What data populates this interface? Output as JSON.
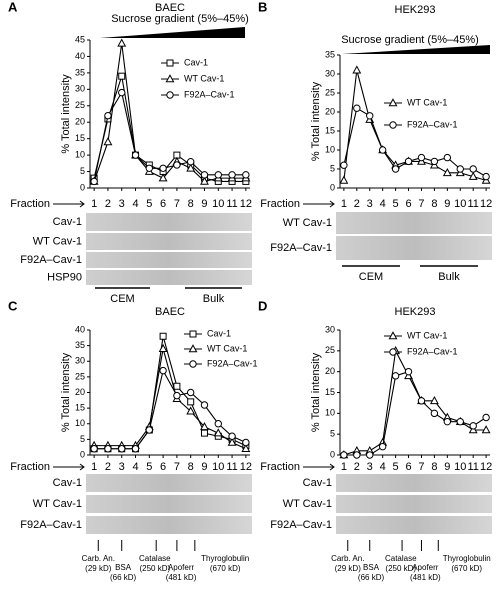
{
  "chart_data": [
    {
      "type": "line",
      "label": "A",
      "title": "BAEC",
      "subtitle": "Sucrose gradient (5%–45%)",
      "ylabel": "% Total intensity",
      "xlabel": "Fraction",
      "x": [
        1,
        2,
        3,
        4,
        5,
        6,
        7,
        8,
        9,
        10,
        11,
        12
      ],
      "xticks": [
        1,
        2,
        3,
        4,
        5,
        6,
        7,
        8,
        9,
        10,
        11,
        12
      ],
      "xlim": [
        0.7,
        12.3
      ],
      "ylim": [
        0,
        45
      ],
      "yticks": [
        0,
        5,
        10,
        15,
        20,
        25,
        30,
        35,
        40,
        45
      ],
      "series": [
        {
          "name": "Cav-1",
          "color": "#000000",
          "marker": "square",
          "values": [
            3,
            21,
            34,
            10,
            7,
            5,
            10,
            7,
            3,
            2,
            2,
            2
          ]
        },
        {
          "name": "WT Cav-1",
          "color": "#000000",
          "marker": "triangle",
          "values": [
            2,
            14,
            44,
            10,
            5,
            3,
            8,
            6,
            2,
            3,
            3,
            3
          ]
        },
        {
          "name": "F92A–Cav-1",
          "color": "#000000",
          "marker": "circle",
          "values": [
            2,
            22,
            29,
            10,
            6,
            6,
            7,
            8,
            4,
            4,
            4,
            4
          ]
        }
      ],
      "blot_rows": [
        "Cav-1",
        "WT Cav-1",
        "F92A–Cav-1",
        "HSP90"
      ],
      "fraction_groups": [
        "CEM",
        "Bulk"
      ]
    },
    {
      "type": "line",
      "label": "B",
      "title": "HEK293",
      "subtitle": "Sucrose gradient (5%–45%)",
      "ylabel": "% Total intensity",
      "xlabel": "Fraction",
      "x": [
        1,
        2,
        3,
        4,
        5,
        6,
        7,
        8,
        9,
        10,
        11,
        12
      ],
      "xticks": [
        1,
        2,
        3,
        4,
        5,
        6,
        7,
        8,
        9,
        10,
        11,
        12
      ],
      "xlim": [
        0.7,
        12.3
      ],
      "ylim": [
        0,
        35
      ],
      "yticks": [
        0,
        5,
        10,
        15,
        20,
        25,
        30,
        35
      ],
      "series": [
        {
          "name": "WT Cav-1",
          "color": "#000000",
          "marker": "triangle",
          "values": [
            2,
            31,
            18,
            10,
            6,
            7,
            7,
            6,
            4,
            4,
            3,
            2
          ]
        },
        {
          "name": "F92A–Cav-1",
          "color": "#000000",
          "marker": "circle",
          "values": [
            6,
            21,
            19,
            10,
            5,
            7,
            8,
            7,
            8,
            5,
            5,
            3
          ]
        }
      ],
      "blot_rows": [
        "WT Cav-1",
        "F92A–Cav-1"
      ],
      "fraction_groups": [
        "CEM",
        "Bulk"
      ]
    },
    {
      "type": "line",
      "label": "C",
      "title": "BAEC",
      "ylabel": "% Total intensity",
      "xlabel": "Fraction",
      "x": [
        1,
        2,
        3,
        4,
        5,
        6,
        7,
        8,
        9,
        10,
        11,
        12
      ],
      "xticks": [
        1,
        2,
        3,
        4,
        5,
        6,
        7,
        8,
        9,
        10,
        11,
        12
      ],
      "xlim": [
        0.7,
        12.3
      ],
      "ylim": [
        0,
        40
      ],
      "yticks": [
        0,
        5,
        10,
        15,
        20,
        25,
        30,
        35,
        40
      ],
      "series": [
        {
          "name": "Cav-1",
          "color": "#000000",
          "marker": "square",
          "values": [
            2,
            2,
            2,
            2,
            8,
            38,
            22,
            17,
            7,
            6,
            5,
            3
          ]
        },
        {
          "name": "WT Cav-1",
          "color": "#000000",
          "marker": "triangle",
          "values": [
            3,
            3,
            3,
            3,
            9,
            34,
            18,
            14,
            9,
            7,
            4,
            2
          ]
        },
        {
          "name": "F92A–Cav-1",
          "color": "#000000",
          "marker": "circle",
          "values": [
            2,
            2,
            2,
            2,
            8,
            27,
            19,
            20,
            16,
            10,
            6,
            4
          ]
        }
      ],
      "blot_rows": [
        "Cav-1",
        "WT Cav-1",
        "F92A–Cav-1"
      ],
      "size_markers": [
        {
          "name": "Carb. An.",
          "size": "(29 kD)"
        },
        {
          "name": "BSA",
          "size": "(66 kD)"
        },
        {
          "name": "Catalase",
          "size": "(250 kD)"
        },
        {
          "name": "Apoferr",
          "size": "(481 kD)"
        },
        {
          "name": "Thyroglobulin",
          "size": "(670 kD)"
        }
      ]
    },
    {
      "type": "line",
      "label": "D",
      "title": "HEK293",
      "ylabel": "% Total intensity",
      "xlabel": "Fraction",
      "x": [
        1,
        2,
        3,
        4,
        5,
        6,
        7,
        8,
        9,
        10,
        11,
        12
      ],
      "xticks": [
        1,
        2,
        3,
        4,
        5,
        6,
        7,
        8,
        9,
        10,
        11,
        12
      ],
      "xlim": [
        0.7,
        12.3
      ],
      "ylim": [
        0,
        30
      ],
      "yticks": [
        0,
        5,
        10,
        15,
        20,
        25,
        30
      ],
      "series": [
        {
          "name": "WT Cav-1",
          "color": "#000000",
          "marker": "triangle",
          "values": [
            0,
            1,
            1,
            3,
            25,
            19,
            13,
            13,
            9,
            8,
            6,
            6
          ]
        },
        {
          "name": "F92A–Cav-1",
          "color": "#000000",
          "marker": "circle",
          "values": [
            0,
            0,
            0,
            2,
            19,
            20,
            13,
            10,
            8,
            8,
            7,
            9
          ]
        }
      ],
      "blot_rows": [
        "Cav-1",
        "WT Cav-1",
        "F92A–Cav-1"
      ],
      "size_markers": [
        {
          "name": "Carb. An.",
          "size": "(29 kD)"
        },
        {
          "name": "BSA",
          "size": "(66 kD)"
        },
        {
          "name": "Catalase",
          "size": "(250 kD)"
        },
        {
          "name": "Apoferr",
          "size": "(481 kD)"
        },
        {
          "name": "Thyroglobulin",
          "size": "(670 kD)"
        }
      ]
    }
  ]
}
